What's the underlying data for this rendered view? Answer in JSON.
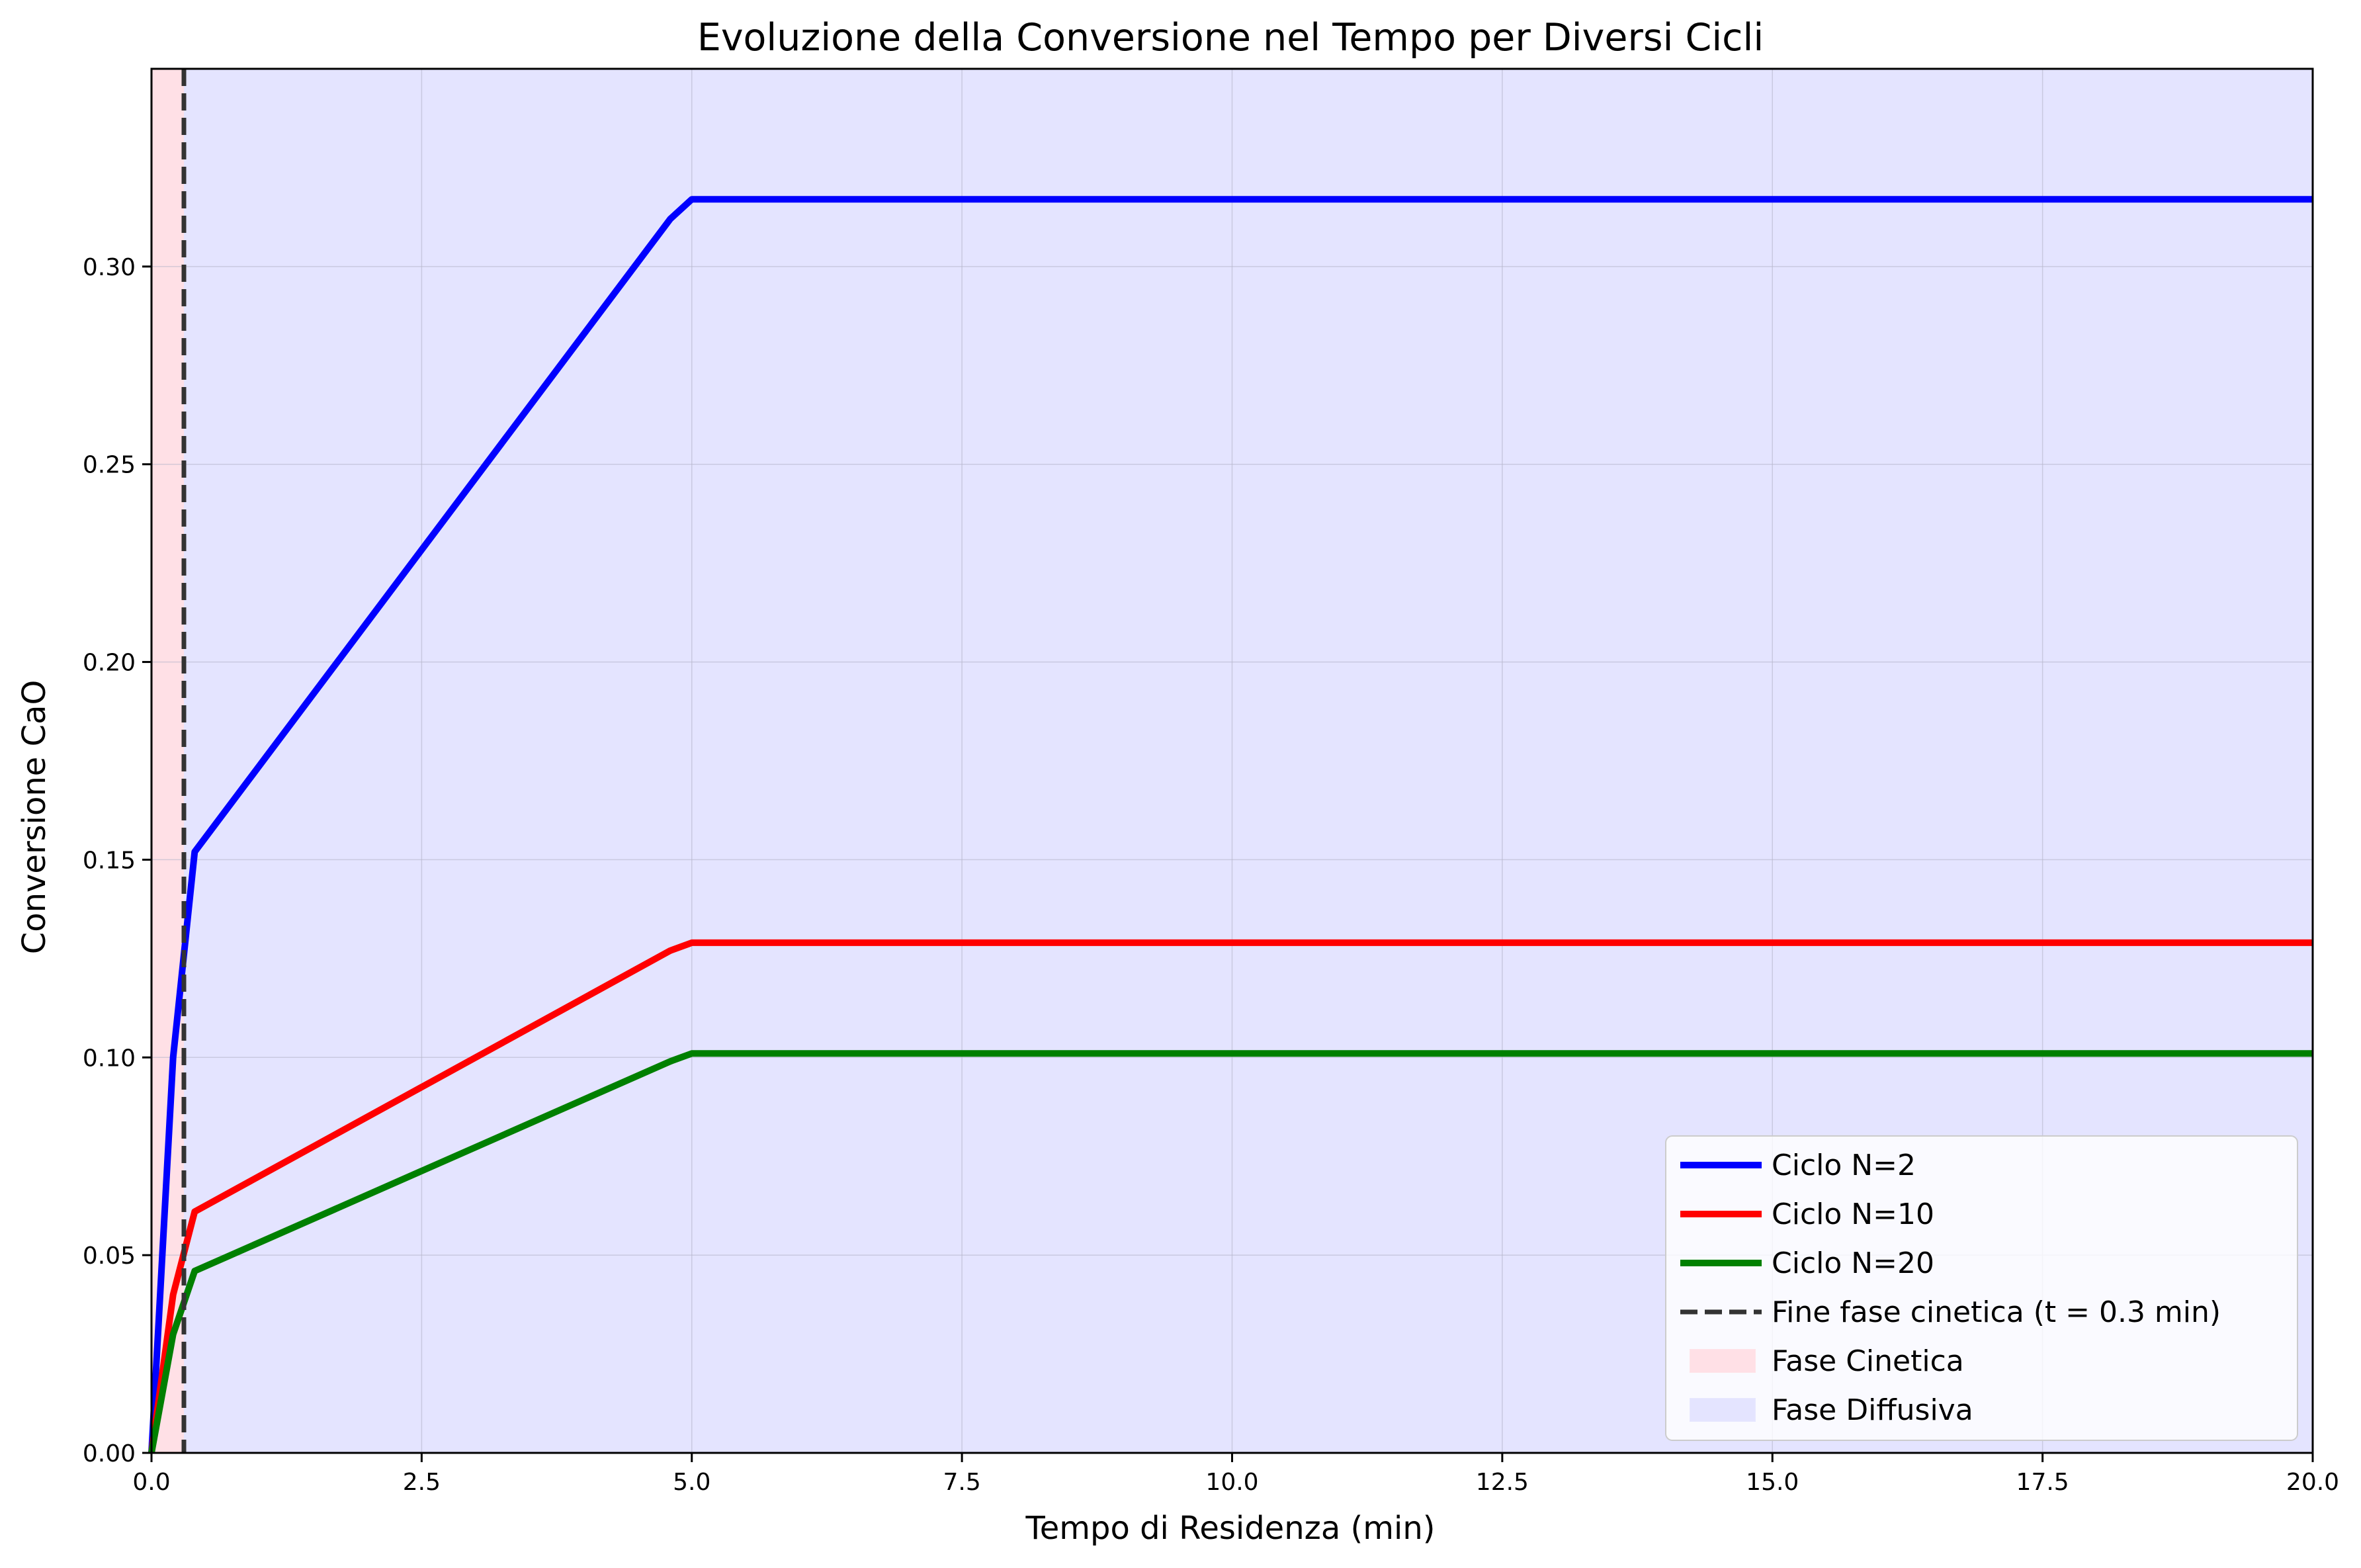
{
  "chart_data": {
    "type": "line",
    "title": "Evoluzione della Conversione nel Tempo per Diversi Cicli",
    "xlabel": "Tempo di Residenza (min)",
    "ylabel": "Conversione CaO",
    "xlim": [
      0,
      20
    ],
    "ylim": [
      0,
      0.35
    ],
    "x_ticks": [
      0,
      2.5,
      5,
      7.5,
      10,
      12.5,
      15,
      17.5,
      20
    ],
    "x_tick_labels": [
      "0.0",
      "2.5",
      "5.0",
      "7.5",
      "10.0",
      "12.5",
      "15.0",
      "17.5",
      "20.0"
    ],
    "y_ticks": [
      0,
      0.05,
      0.1,
      0.15,
      0.2,
      0.25,
      0.3
    ],
    "y_tick_labels": [
      "0.00",
      "0.05",
      "0.10",
      "0.15",
      "0.20",
      "0.25",
      "0.30"
    ],
    "grid": true,
    "legend_position": "lower-right",
    "series": [
      {
        "name": "Ciclo N=2",
        "color": "#0000ff",
        "x": [
          0,
          0.2,
          0.4,
          4.8,
          5.0,
          20
        ],
        "y": [
          0,
          0.1,
          0.152,
          0.312,
          0.317,
          0.317
        ]
      },
      {
        "name": "Ciclo N=10",
        "color": "#ff0000",
        "x": [
          0,
          0.2,
          0.4,
          4.8,
          5.0,
          20
        ],
        "y": [
          0,
          0.04,
          0.061,
          0.127,
          0.129,
          0.129
        ]
      },
      {
        "name": "Ciclo N=20",
        "color": "#008000",
        "x": [
          0,
          0.2,
          0.4,
          4.8,
          5.0,
          20
        ],
        "y": [
          0,
          0.03,
          0.046,
          0.099,
          0.101,
          0.101
        ]
      }
    ],
    "vline": {
      "name": "Fine fase cinetica (t = 0.3 min)",
      "x": 0.3,
      "color": "#333333"
    },
    "regions": [
      {
        "name": "Fase Cinetica",
        "x0": 0,
        "x1": 0.3,
        "color": "#ffe0e6"
      },
      {
        "name": "Fase Diffusiva",
        "x0": 0.3,
        "x1": 20,
        "color": "#e4e4ff"
      }
    ]
  }
}
